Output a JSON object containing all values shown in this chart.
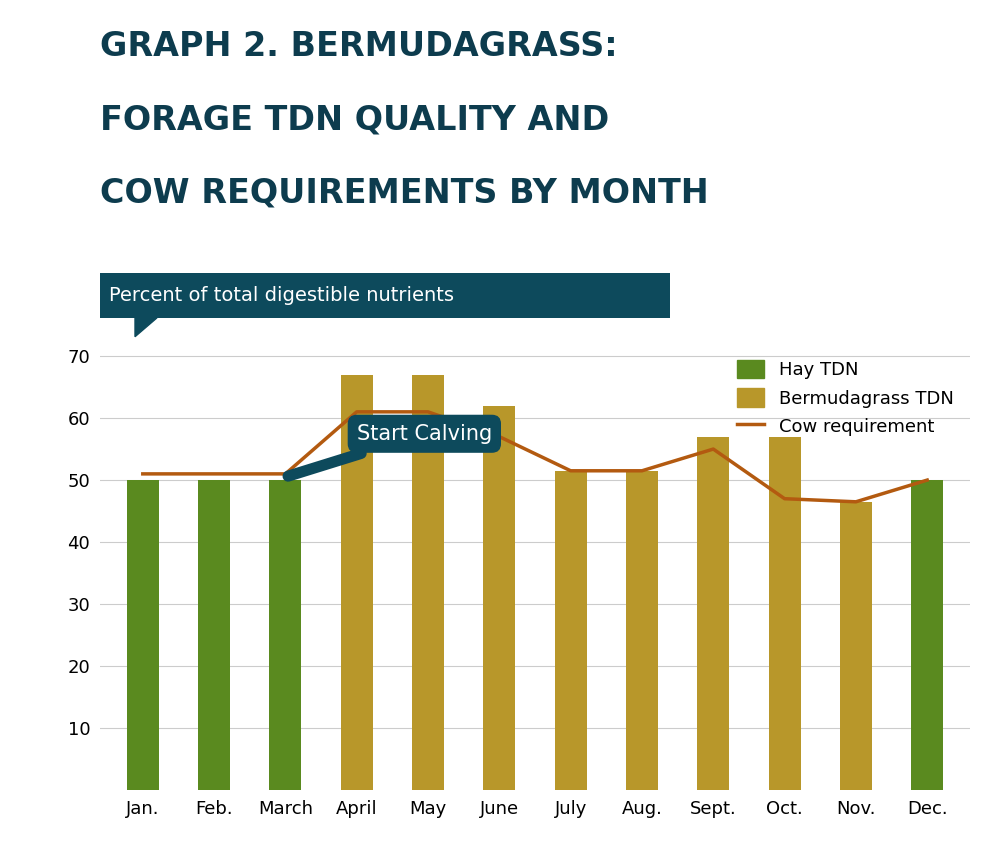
{
  "title_line1": "GRAPH 2. BERMUDAGRASS:",
  "title_line2": "FORAGE TDN QUALITY AND",
  "title_line3": "COW REQUIREMENTS BY MONTH",
  "subtitle": "Percent of total digestible nutrients",
  "months": [
    "Jan.",
    "Feb.",
    "March",
    "April",
    "May",
    "June",
    "July",
    "Aug.",
    "Sept.",
    "Oct.",
    "Nov.",
    "Dec."
  ],
  "hay_tdn": [
    50,
    50,
    50,
    0,
    0,
    0,
    0,
    0,
    0,
    0,
    0,
    50
  ],
  "bermuda_tdn": [
    0,
    0,
    0,
    67,
    67,
    62,
    51.5,
    51.5,
    57,
    57,
    46.5,
    0
  ],
  "cow_req": [
    51,
    51,
    51,
    61,
    61,
    57,
    51.5,
    51.5,
    55,
    47,
    46.5,
    50
  ],
  "hay_color": "#5a8a1f",
  "bermuda_color": "#b8972a",
  "cow_req_color": "#b35a10",
  "title_color": "#0d3c4e",
  "subtitle_bg_color": "#0d4a5c",
  "subtitle_text_color": "#ffffff",
  "annotation_bg_color": "#0d4a5c",
  "annotation_text_color": "#ffffff",
  "annotation_text": "Start Calving",
  "ylim": [
    0,
    72
  ],
  "yticks": [
    10,
    20,
    30,
    40,
    50,
    60,
    70
  ],
  "background_color": "#ffffff",
  "grid_color": "#cccccc",
  "bar_width": 0.45
}
